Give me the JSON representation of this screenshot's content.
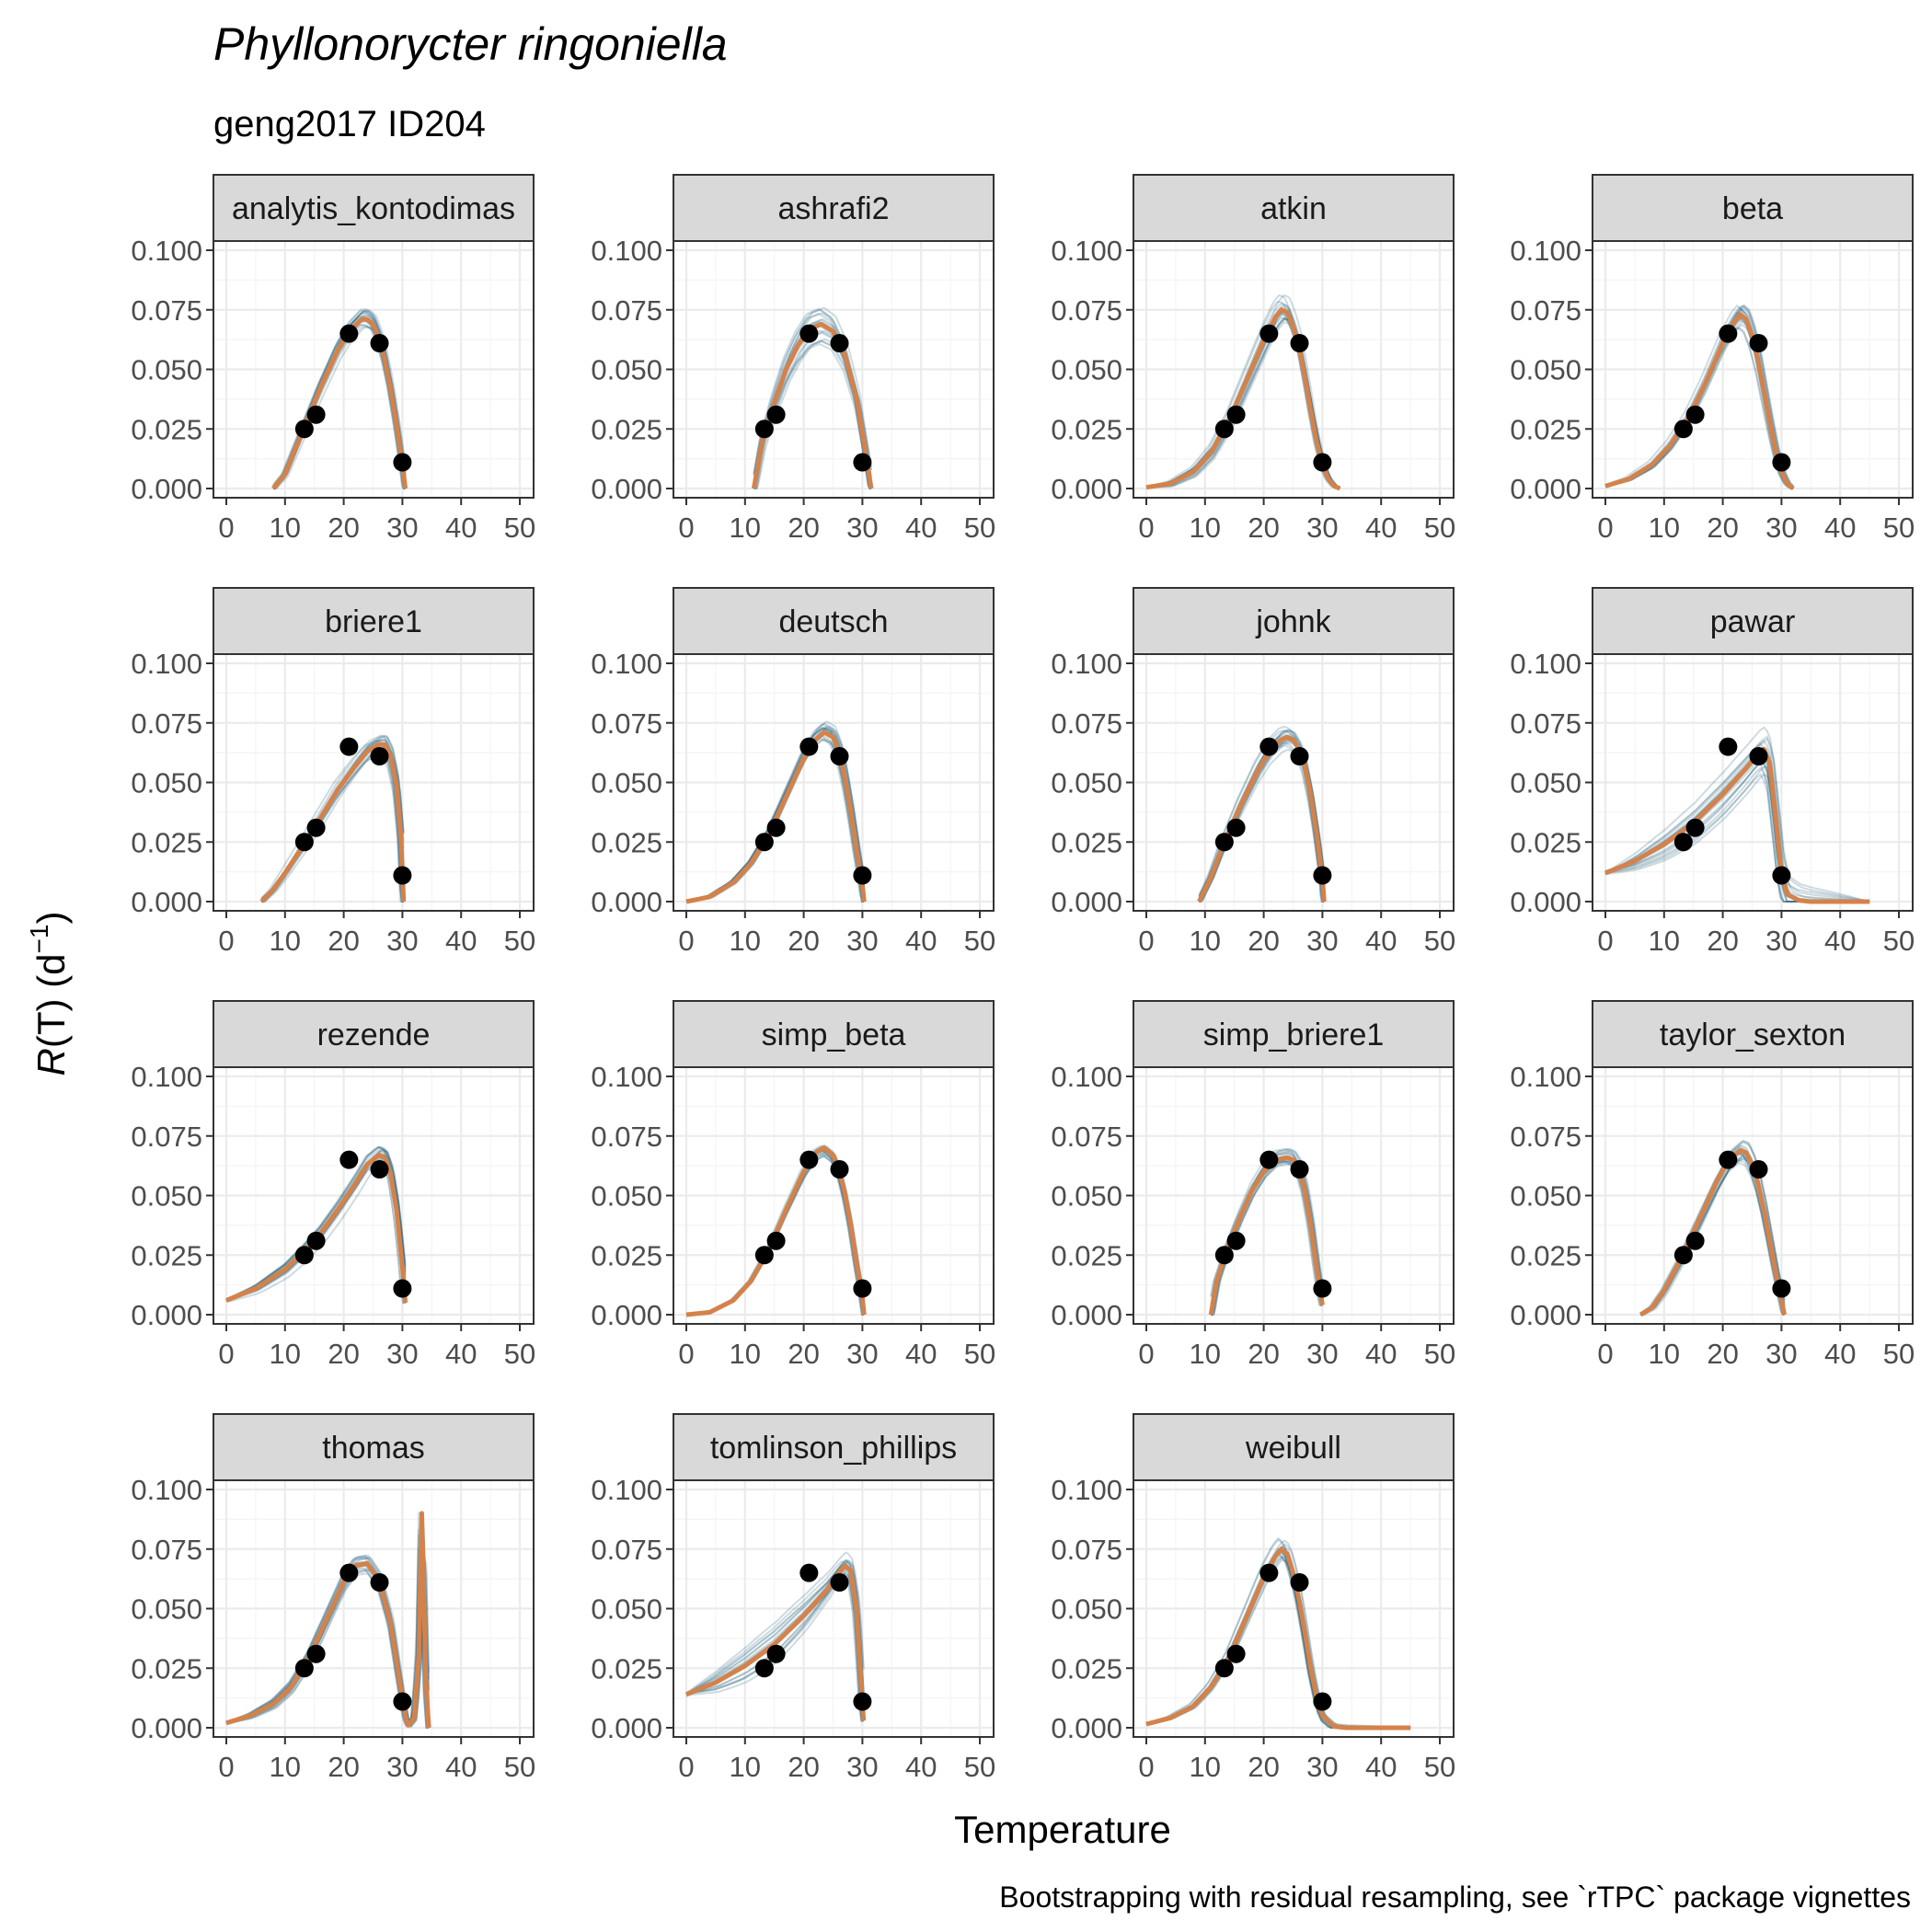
{
  "title": "Phyllonorycter ringoniella",
  "subtitle": "geng2017 ID204",
  "caption": "Bootstrapping with residual resampling, see `rTPC` package vignettes",
  "colors": {
    "bootstrap": "#1f5c78",
    "fit": "#d4824a",
    "points": "#000000",
    "strip_bg": "#d9d9d9"
  },
  "chart_data": {
    "type": "line",
    "xlabel": "Temperature",
    "ylabel_parts": [
      "R",
      "(T) (d",
      "−1",
      ")"
    ],
    "xlim": [
      0,
      50
    ],
    "ylim": [
      0,
      0.1
    ],
    "xticks": [
      0,
      10,
      20,
      30,
      40,
      50
    ],
    "yticks": [
      "0.000",
      "0.025",
      "0.050",
      "0.075",
      "0.100"
    ],
    "ytick_values": [
      0,
      0.025,
      0.05,
      0.075,
      0.1
    ],
    "grid": true,
    "observations": {
      "x": [
        13.3,
        15.3,
        20.9,
        26.1,
        30.0
      ],
      "y": [
        0.025,
        0.031,
        0.065,
        0.061,
        0.011
      ]
    },
    "panels": [
      {
        "name": "analytis_kontodimas",
        "fit": [
          [
            8,
            0
          ],
          [
            10,
            0.006
          ],
          [
            13,
            0.024
          ],
          [
            16,
            0.042
          ],
          [
            19,
            0.058
          ],
          [
            21,
            0.066
          ],
          [
            23,
            0.071
          ],
          [
            24,
            0.071
          ],
          [
            25,
            0.069
          ],
          [
            26,
            0.063
          ],
          [
            27,
            0.054
          ],
          [
            28,
            0.042
          ],
          [
            29,
            0.027
          ],
          [
            30,
            0.01
          ],
          [
            30.5,
            0
          ]
        ],
        "spread": 0.002
      },
      {
        "name": "ashrafi2",
        "fit": [
          [
            11.5,
            0
          ],
          [
            13,
            0.02
          ],
          [
            15,
            0.036
          ],
          [
            17,
            0.05
          ],
          [
            19,
            0.06
          ],
          [
            21,
            0.067
          ],
          [
            23,
            0.069
          ],
          [
            25,
            0.066
          ],
          [
            27,
            0.056
          ],
          [
            29,
            0.038
          ],
          [
            30.5,
            0.016
          ],
          [
            31.5,
            0
          ]
        ],
        "spread": 0.005
      },
      {
        "name": "atkin",
        "fit": [
          [
            0,
            0.0005
          ],
          [
            4,
            0.002
          ],
          [
            8,
            0.007
          ],
          [
            11,
            0.015
          ],
          [
            14,
            0.028
          ],
          [
            17,
            0.045
          ],
          [
            20,
            0.062
          ],
          [
            22,
            0.072
          ],
          [
            23,
            0.075
          ],
          [
            24,
            0.074
          ],
          [
            25,
            0.068
          ],
          [
            26,
            0.06
          ],
          [
            27,
            0.047
          ],
          [
            28,
            0.033
          ],
          [
            29,
            0.02
          ],
          [
            30,
            0.01
          ],
          [
            31,
            0.004
          ],
          [
            32,
            0.001
          ],
          [
            33,
            0
          ]
        ],
        "spread": 0.003
      },
      {
        "name": "beta",
        "fit": [
          [
            0,
            0.001
          ],
          [
            4,
            0.004
          ],
          [
            8,
            0.01
          ],
          [
            11,
            0.018
          ],
          [
            14,
            0.029
          ],
          [
            17,
            0.044
          ],
          [
            20,
            0.061
          ],
          [
            22,
            0.07
          ],
          [
            23,
            0.073
          ],
          [
            24,
            0.071
          ],
          [
            25,
            0.064
          ],
          [
            26,
            0.054
          ],
          [
            27,
            0.041
          ],
          [
            28,
            0.028
          ],
          [
            29,
            0.016
          ],
          [
            30,
            0.007
          ],
          [
            31,
            0.002
          ],
          [
            32,
            0
          ]
        ],
        "spread": 0.002
      },
      {
        "name": "briere1",
        "fit": [
          [
            6,
            0
          ],
          [
            8,
            0.005
          ],
          [
            10,
            0.012
          ],
          [
            13,
            0.023
          ],
          [
            16,
            0.035
          ],
          [
            19,
            0.047
          ],
          [
            22,
            0.057
          ],
          [
            24,
            0.063
          ],
          [
            26,
            0.066
          ],
          [
            27,
            0.066
          ],
          [
            28,
            0.061
          ],
          [
            29,
            0.049
          ],
          [
            29.8,
            0.026
          ],
          [
            30.2,
            0
          ]
        ],
        "spread": 0.004
      },
      {
        "name": "deutsch",
        "fit": [
          [
            0,
            0
          ],
          [
            4,
            0.002
          ],
          [
            8,
            0.008
          ],
          [
            11,
            0.016
          ],
          [
            14,
            0.028
          ],
          [
            17,
            0.044
          ],
          [
            20,
            0.06
          ],
          [
            22,
            0.068
          ],
          [
            23.5,
            0.071
          ],
          [
            25,
            0.069
          ],
          [
            26,
            0.063
          ],
          [
            27,
            0.052
          ],
          [
            28,
            0.038
          ],
          [
            29,
            0.022
          ],
          [
            30,
            0.007
          ],
          [
            30.3,
            0
          ]
        ],
        "spread": 0.001
      },
      {
        "name": "johnk",
        "fit": [
          [
            9,
            0
          ],
          [
            11,
            0.01
          ],
          [
            13,
            0.023
          ],
          [
            16,
            0.04
          ],
          [
            19,
            0.055
          ],
          [
            21,
            0.063
          ],
          [
            23,
            0.068
          ],
          [
            24,
            0.069
          ],
          [
            25,
            0.068
          ],
          [
            26,
            0.064
          ],
          [
            27,
            0.057
          ],
          [
            28,
            0.045
          ],
          [
            29,
            0.029
          ],
          [
            30,
            0.01
          ],
          [
            30.3,
            0
          ]
        ],
        "spread": 0.002
      },
      {
        "name": "pawar",
        "fit": [
          [
            0,
            0.012
          ],
          [
            5,
            0.017
          ],
          [
            10,
            0.024
          ],
          [
            15,
            0.033
          ],
          [
            20,
            0.045
          ],
          [
            24,
            0.056
          ],
          [
            26,
            0.062
          ],
          [
            27,
            0.064
          ],
          [
            28,
            0.058
          ],
          [
            29,
            0.036
          ],
          [
            30,
            0.012
          ],
          [
            31,
            0.003
          ],
          [
            33,
            0.0005
          ],
          [
            35,
            0
          ],
          [
            45,
            0
          ]
        ],
        "spread": 0.01
      },
      {
        "name": "rezende",
        "fit": [
          [
            0,
            0.006
          ],
          [
            5,
            0.011
          ],
          [
            10,
            0.019
          ],
          [
            13,
            0.026
          ],
          [
            16,
            0.034
          ],
          [
            19,
            0.044
          ],
          [
            22,
            0.055
          ],
          [
            24,
            0.063
          ],
          [
            26,
            0.067
          ],
          [
            27,
            0.066
          ],
          [
            28,
            0.059
          ],
          [
            29,
            0.044
          ],
          [
            30,
            0.02
          ],
          [
            30.5,
            0.005
          ]
        ],
        "spread": 0.003
      },
      {
        "name": "simp_beta",
        "fit": [
          [
            0,
            0
          ],
          [
            4,
            0.001
          ],
          [
            8,
            0.006
          ],
          [
            11,
            0.014
          ],
          [
            14,
            0.027
          ],
          [
            17,
            0.044
          ],
          [
            20,
            0.06
          ],
          [
            22,
            0.068
          ],
          [
            23.5,
            0.07
          ],
          [
            25,
            0.067
          ],
          [
            26,
            0.061
          ],
          [
            27,
            0.051
          ],
          [
            28,
            0.038
          ],
          [
            29,
            0.022
          ],
          [
            30,
            0.007
          ],
          [
            30.3,
            0
          ]
        ],
        "spread": 0.001
      },
      {
        "name": "simp_briere1",
        "fit": [
          [
            11,
            0
          ],
          [
            12,
            0.014
          ],
          [
            14,
            0.029
          ],
          [
            16,
            0.041
          ],
          [
            18,
            0.052
          ],
          [
            20,
            0.06
          ],
          [
            22,
            0.065
          ],
          [
            24,
            0.066
          ],
          [
            25,
            0.065
          ],
          [
            26,
            0.061
          ],
          [
            27,
            0.052
          ],
          [
            28,
            0.038
          ],
          [
            29,
            0.02
          ],
          [
            30,
            0.004
          ]
        ],
        "spread": 0.002
      },
      {
        "name": "taylor_sexton",
        "fit": [
          [
            6,
            0
          ],
          [
            8,
            0.003
          ],
          [
            10,
            0.01
          ],
          [
            13,
            0.024
          ],
          [
            16,
            0.04
          ],
          [
            19,
            0.056
          ],
          [
            21,
            0.065
          ],
          [
            23,
            0.069
          ],
          [
            24,
            0.068
          ],
          [
            25,
            0.063
          ],
          [
            26,
            0.055
          ],
          [
            27,
            0.044
          ],
          [
            28,
            0.031
          ],
          [
            29,
            0.018
          ],
          [
            30,
            0.006
          ],
          [
            30.5,
            0
          ]
        ],
        "spread": 0.002
      },
      {
        "name": "thomas",
        "fit": [
          [
            0,
            0.002
          ],
          [
            4,
            0.005
          ],
          [
            8,
            0.01
          ],
          [
            11,
            0.017
          ],
          [
            14,
            0.029
          ],
          [
            17,
            0.045
          ],
          [
            20,
            0.061
          ],
          [
            22,
            0.068
          ],
          [
            24,
            0.069
          ],
          [
            26,
            0.062
          ],
          [
            28,
            0.044
          ],
          [
            29.5,
            0.02
          ],
          [
            30.5,
            0.005
          ],
          [
            31,
            0.001
          ],
          [
            32,
            0.004
          ],
          [
            32.8,
            0.03
          ],
          [
            33.3,
            0.09
          ],
          [
            33.6,
            0.06
          ],
          [
            34,
            0.02
          ],
          [
            34.5,
            0
          ]
        ],
        "spread": 0.003
      },
      {
        "name": "tomlinson_phillips",
        "fit": [
          [
            0,
            0.014
          ],
          [
            5,
            0.019
          ],
          [
            10,
            0.026
          ],
          [
            15,
            0.035
          ],
          [
            20,
            0.047
          ],
          [
            24,
            0.058
          ],
          [
            26,
            0.065
          ],
          [
            27,
            0.068
          ],
          [
            28,
            0.066
          ],
          [
            29,
            0.05
          ],
          [
            29.8,
            0.018
          ],
          [
            30.2,
            0.003
          ]
        ],
        "spread": 0.008
      },
      {
        "name": "weibull",
        "fit": [
          [
            0,
            0.0015
          ],
          [
            4,
            0.004
          ],
          [
            8,
            0.009
          ],
          [
            11,
            0.017
          ],
          [
            14,
            0.029
          ],
          [
            17,
            0.046
          ],
          [
            20,
            0.063
          ],
          [
            22,
            0.072
          ],
          [
            23,
            0.075
          ],
          [
            24,
            0.073
          ],
          [
            25,
            0.065
          ],
          [
            26,
            0.054
          ],
          [
            27,
            0.04
          ],
          [
            28,
            0.025
          ],
          [
            29,
            0.013
          ],
          [
            30,
            0.005
          ],
          [
            32,
            0.0005
          ],
          [
            34,
            0
          ],
          [
            45,
            0
          ]
        ],
        "spread": 0.002
      }
    ]
  }
}
